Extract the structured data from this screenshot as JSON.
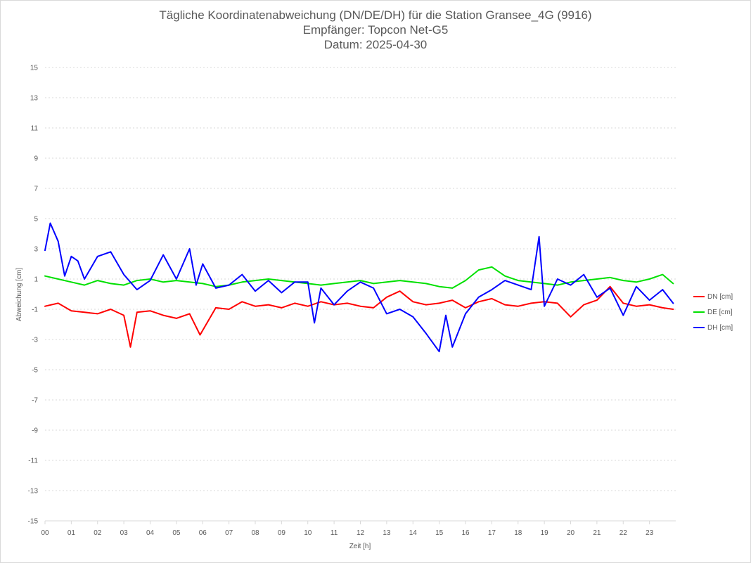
{
  "title": {
    "line1": "Tägliche Koordinatenabweichung (DN/DE/DH) für die Station Gransee_4G (9916)",
    "line2": "Empfänger: Topcon Net-G5",
    "line3": "Datum: 2025-04-30"
  },
  "chart_data": {
    "type": "line",
    "title": "Tägliche Koordinatenabweichung (DN/DE/DH) für die Station Gransee_4G (9916)",
    "subtitle": [
      "Empfänger: Topcon Net-G5",
      "Datum: 2025-04-30"
    ],
    "xlabel": "Zeit [h]",
    "ylabel": "Abweichung [cm]",
    "xlim": [
      0,
      24
    ],
    "ylim": [
      -15,
      15
    ],
    "xticks": [
      "00",
      "01",
      "02",
      "03",
      "04",
      "05",
      "06",
      "07",
      "08",
      "09",
      "10",
      "11",
      "12",
      "13",
      "14",
      "15",
      "16",
      "17",
      "18",
      "19",
      "20",
      "21",
      "22",
      "23"
    ],
    "yticks": [
      "15",
      "13",
      "11",
      "9",
      "7",
      "5",
      "3",
      "1",
      "-1",
      "-3",
      "-5",
      "-7",
      "-9",
      "-11",
      "-13",
      "-15"
    ],
    "grid": true,
    "legend_position": "right",
    "series": [
      {
        "name": "DN [cm]",
        "color": "#ff0000",
        "x": [
          0,
          0.5,
          1,
          1.5,
          2,
          2.5,
          3,
          3.25,
          3.5,
          4,
          4.5,
          5,
          5.5,
          5.9,
          6.5,
          7,
          7.5,
          8,
          8.5,
          9,
          9.5,
          10,
          10.5,
          11,
          11.5,
          12,
          12.5,
          13,
          13.5,
          14,
          14.5,
          15,
          15.5,
          16,
          16.5,
          17,
          17.5,
          18,
          18.5,
          19,
          19.5,
          20,
          20.5,
          21,
          21.5,
          22,
          22.5,
          23,
          23.5,
          23.9
        ],
        "values": [
          -0.8,
          -0.6,
          -1.1,
          -1.2,
          -1.3,
          -1.0,
          -1.4,
          -3.5,
          -1.2,
          -1.1,
          -1.4,
          -1.6,
          -1.3,
          -2.7,
          -0.9,
          -1.0,
          -0.5,
          -0.8,
          -0.7,
          -0.9,
          -0.6,
          -0.8,
          -0.5,
          -0.7,
          -0.6,
          -0.8,
          -0.9,
          -0.2,
          0.2,
          -0.5,
          -0.7,
          -0.6,
          -0.4,
          -0.9,
          -0.5,
          -0.3,
          -0.7,
          -0.8,
          -0.6,
          -0.5,
          -0.6,
          -1.5,
          -0.7,
          -0.4,
          0.5,
          -0.6,
          -0.8,
          -0.7,
          -0.9,
          -1.0
        ]
      },
      {
        "name": "DE [cm]",
        "color": "#00e000",
        "x": [
          0,
          0.5,
          1,
          1.5,
          2,
          2.5,
          3,
          3.5,
          4,
          4.5,
          5,
          5.5,
          6,
          6.5,
          7,
          7.5,
          8,
          8.5,
          9,
          9.5,
          10,
          10.5,
          11,
          11.5,
          12,
          12.5,
          13,
          13.5,
          14,
          14.5,
          15,
          15.5,
          16,
          16.5,
          17,
          17.5,
          18,
          18.5,
          19,
          19.5,
          20,
          20.5,
          21,
          21.5,
          22,
          22.5,
          23,
          23.5,
          23.9
        ],
        "values": [
          1.2,
          1.0,
          0.8,
          0.6,
          0.9,
          0.7,
          0.6,
          0.9,
          1.0,
          0.8,
          0.9,
          0.8,
          0.7,
          0.5,
          0.6,
          0.8,
          0.9,
          1.0,
          0.9,
          0.8,
          0.7,
          0.6,
          0.7,
          0.8,
          0.9,
          0.7,
          0.8,
          0.9,
          0.8,
          0.7,
          0.5,
          0.4,
          0.9,
          1.6,
          1.8,
          1.2,
          0.9,
          0.8,
          0.7,
          0.6,
          0.8,
          0.9,
          1.0,
          1.1,
          0.9,
          0.8,
          1.0,
          1.3,
          0.7
        ]
      },
      {
        "name": "DH [cm]",
        "color": "#0000ff",
        "x": [
          0,
          0.2,
          0.5,
          0.75,
          1,
          1.25,
          1.5,
          2,
          2.5,
          3,
          3.5,
          4,
          4.5,
          5,
          5.5,
          5.75,
          6,
          6.5,
          7,
          7.5,
          8,
          8.5,
          9,
          9.5,
          10,
          10.25,
          10.5,
          11,
          11.5,
          12,
          12.5,
          13,
          13.5,
          14,
          14.5,
          15,
          15.25,
          15.5,
          16,
          16.5,
          17,
          17.5,
          18,
          18.5,
          18.8,
          19,
          19.5,
          20,
          20.5,
          21,
          21.5,
          22,
          22.5,
          23,
          23.5,
          23.9
        ],
        "values": [
          2.9,
          4.7,
          3.5,
          1.2,
          2.5,
          2.2,
          1.0,
          2.5,
          2.8,
          1.3,
          0.3,
          0.9,
          2.6,
          1.0,
          3.0,
          0.6,
          2.0,
          0.4,
          0.6,
          1.3,
          0.2,
          0.9,
          0.1,
          0.8,
          0.8,
          -1.9,
          0.4,
          -0.7,
          0.2,
          0.8,
          0.4,
          -1.3,
          -1.0,
          -1.5,
          -2.6,
          -3.8,
          -1.4,
          -3.5,
          -1.3,
          -0.2,
          0.3,
          0.9,
          0.6,
          0.3,
          3.8,
          -0.8,
          1.0,
          0.6,
          1.3,
          -0.2,
          0.4,
          -1.4,
          0.5,
          -0.4,
          0.3,
          -0.6
        ]
      }
    ]
  },
  "legend": {
    "items": [
      {
        "label": "DN [cm]",
        "color": "#ff0000"
      },
      {
        "label": "DE [cm]",
        "color": "#00e000"
      },
      {
        "label": "DH [cm]",
        "color": "#0000ff"
      }
    ]
  }
}
